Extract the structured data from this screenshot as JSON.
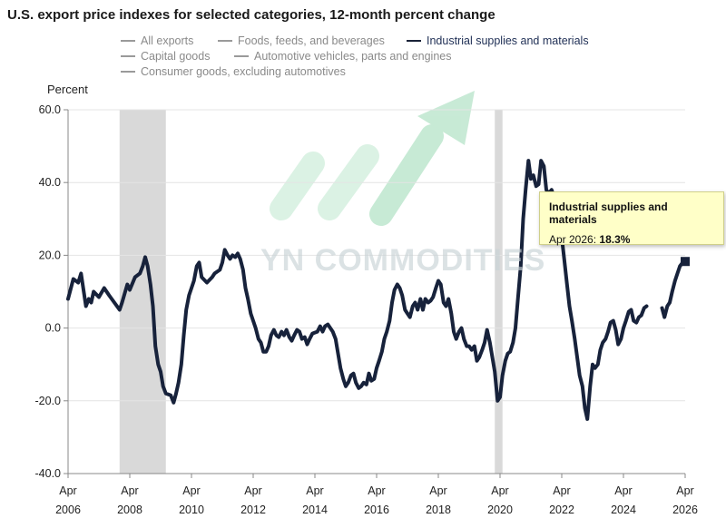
{
  "title": "U.S. export price indexes for selected categories, 12-month percent change",
  "legend": [
    {
      "label": "All exports",
      "active": false
    },
    {
      "label": "Foods, feeds, and beverages",
      "active": false
    },
    {
      "label": "Industrial supplies and materials",
      "active": true
    },
    {
      "label": "Capital goods",
      "active": false
    },
    {
      "label": "Automotive vehicles, parts and engines",
      "active": false
    },
    {
      "label": "Consumer goods, excluding automotives",
      "active": false
    }
  ],
  "watermark": "YN COMMODITIES",
  "tooltip": {
    "series": "Industrial supplies and materials",
    "date": "Apr 2026:",
    "value": "18.3%"
  },
  "colors": {
    "line": "#17223b",
    "recession": "#d9d9d9",
    "legend_inactive": "#8a8a8a",
    "legend_active": "#1f2f55",
    "tooltip_bg": "#ffffc8",
    "logo_green": "#bfe8cf"
  },
  "chart_data": {
    "type": "line",
    "title": "U.S. export price indexes for selected categories, 12-month percent change",
    "ylabel": "Percent",
    "xlabel": "",
    "ylim": [
      -40,
      60
    ],
    "y_ticks": [
      "60.0",
      "40.0",
      "20.0",
      "0.0",
      "-20.0",
      "-40.0"
    ],
    "x_ticks": [
      {
        "month": "Apr",
        "year": "2006",
        "t": 2006.25
      },
      {
        "month": "Apr",
        "year": "2008",
        "t": 2008.25
      },
      {
        "month": "Apr",
        "year": "2010",
        "t": 2010.25
      },
      {
        "month": "Apr",
        "year": "2012",
        "t": 2012.25
      },
      {
        "month": "Apr",
        "year": "2014",
        "t": 2014.25
      },
      {
        "month": "Apr",
        "year": "2016",
        "t": 2016.25
      },
      {
        "month": "Apr",
        "year": "2018",
        "t": 2018.25
      },
      {
        "month": "Apr",
        "year": "2020",
        "t": 2020.25
      },
      {
        "month": "Apr",
        "year": "2022",
        "t": 2022.25
      },
      {
        "month": "Apr",
        "year": "2024",
        "t": 2024.25
      },
      {
        "month": "Apr",
        "year": "2026",
        "t": 2026.25
      }
    ],
    "x_range": [
      2006.25,
      2026.25
    ],
    "recessions": [
      [
        2007.92,
        2009.42
      ],
      [
        2020.08,
        2020.33
      ]
    ],
    "grid": "horizontal",
    "series": [
      {
        "name": "Industrial supplies and materials",
        "points": [
          [
            2006.25,
            8
          ],
          [
            2006.42,
            13.5
          ],
          [
            2006.58,
            12.5
          ],
          [
            2006.67,
            15
          ],
          [
            2006.83,
            6
          ],
          [
            2006.92,
            8
          ],
          [
            2007.0,
            7
          ],
          [
            2007.08,
            10
          ],
          [
            2007.25,
            8.5
          ],
          [
            2007.42,
            11
          ],
          [
            2007.58,
            9
          ],
          [
            2007.75,
            7
          ],
          [
            2007.92,
            5
          ],
          [
            2008.0,
            7
          ],
          [
            2008.17,
            12
          ],
          [
            2008.25,
            10.5
          ],
          [
            2008.42,
            14
          ],
          [
            2008.58,
            15
          ],
          [
            2008.67,
            17
          ],
          [
            2008.75,
            19.5
          ],
          [
            2008.83,
            17
          ],
          [
            2008.92,
            12
          ],
          [
            2009.0,
            6
          ],
          [
            2009.08,
            -5
          ],
          [
            2009.17,
            -10
          ],
          [
            2009.25,
            -12
          ],
          [
            2009.33,
            -16
          ],
          [
            2009.42,
            -18
          ],
          [
            2009.58,
            -18.5
          ],
          [
            2009.67,
            -20.5
          ],
          [
            2009.75,
            -18
          ],
          [
            2009.83,
            -15
          ],
          [
            2009.92,
            -10
          ],
          [
            2010.0,
            -2
          ],
          [
            2010.08,
            5
          ],
          [
            2010.17,
            9
          ],
          [
            2010.25,
            11
          ],
          [
            2010.33,
            13
          ],
          [
            2010.42,
            17
          ],
          [
            2010.5,
            18
          ],
          [
            2010.58,
            14
          ],
          [
            2010.75,
            12.5
          ],
          [
            2010.92,
            14
          ],
          [
            2011.0,
            15
          ],
          [
            2011.17,
            16
          ],
          [
            2011.25,
            18
          ],
          [
            2011.33,
            21.5
          ],
          [
            2011.42,
            20
          ],
          [
            2011.5,
            19
          ],
          [
            2011.58,
            20
          ],
          [
            2011.67,
            19.5
          ],
          [
            2011.75,
            20.5
          ],
          [
            2011.83,
            19
          ],
          [
            2011.92,
            16
          ],
          [
            2012.0,
            11
          ],
          [
            2012.08,
            8
          ],
          [
            2012.17,
            4
          ],
          [
            2012.25,
            2
          ],
          [
            2012.33,
            0
          ],
          [
            2012.42,
            -3
          ],
          [
            2012.5,
            -4
          ],
          [
            2012.58,
            -6.5
          ],
          [
            2012.67,
            -6.5
          ],
          [
            2012.75,
            -5
          ],
          [
            2012.83,
            -2
          ],
          [
            2012.92,
            -0.5
          ],
          [
            2013.0,
            -2
          ],
          [
            2013.08,
            -2.5
          ],
          [
            2013.17,
            -1
          ],
          [
            2013.25,
            -2
          ],
          [
            2013.33,
            -0.5
          ],
          [
            2013.42,
            -2.5
          ],
          [
            2013.5,
            -3.5
          ],
          [
            2013.58,
            -2
          ],
          [
            2013.67,
            -0.5
          ],
          [
            2013.75,
            -1
          ],
          [
            2013.83,
            -3
          ],
          [
            2013.92,
            -2.5
          ],
          [
            2014.0,
            -4.5
          ],
          [
            2014.08,
            -3
          ],
          [
            2014.17,
            -1.5
          ],
          [
            2014.33,
            -1
          ],
          [
            2014.42,
            0.5
          ],
          [
            2014.5,
            -1
          ],
          [
            2014.58,
            0.5
          ],
          [
            2014.67,
            1
          ],
          [
            2014.75,
            0
          ],
          [
            2014.83,
            -1
          ],
          [
            2014.92,
            -3
          ],
          [
            2015.0,
            -7
          ],
          [
            2015.08,
            -11
          ],
          [
            2015.17,
            -14
          ],
          [
            2015.25,
            -16
          ],
          [
            2015.33,
            -15
          ],
          [
            2015.42,
            -13
          ],
          [
            2015.5,
            -12.5
          ],
          [
            2015.58,
            -15
          ],
          [
            2015.67,
            -16.5
          ],
          [
            2015.75,
            -16
          ],
          [
            2015.83,
            -15
          ],
          [
            2015.92,
            -15.5
          ],
          [
            2016.0,
            -12.5
          ],
          [
            2016.08,
            -14.5
          ],
          [
            2016.17,
            -14
          ],
          [
            2016.25,
            -11
          ],
          [
            2016.33,
            -9
          ],
          [
            2016.42,
            -6.5
          ],
          [
            2016.5,
            -3
          ],
          [
            2016.58,
            -1
          ],
          [
            2016.67,
            2
          ],
          [
            2016.75,
            7
          ],
          [
            2016.83,
            10.5
          ],
          [
            2016.92,
            12
          ],
          [
            2017.0,
            11
          ],
          [
            2017.08,
            9
          ],
          [
            2017.17,
            5
          ],
          [
            2017.25,
            4
          ],
          [
            2017.33,
            3
          ],
          [
            2017.42,
            6
          ],
          [
            2017.5,
            7
          ],
          [
            2017.58,
            5
          ],
          [
            2017.67,
            8
          ],
          [
            2017.75,
            5
          ],
          [
            2017.83,
            8
          ],
          [
            2017.92,
            7
          ],
          [
            2018.0,
            7.5
          ],
          [
            2018.08,
            8.5
          ],
          [
            2018.17,
            11
          ],
          [
            2018.25,
            13
          ],
          [
            2018.33,
            12
          ],
          [
            2018.42,
            7
          ],
          [
            2018.5,
            6
          ],
          [
            2018.58,
            8
          ],
          [
            2018.67,
            4
          ],
          [
            2018.75,
            -1
          ],
          [
            2018.83,
            -3
          ],
          [
            2018.92,
            -1
          ],
          [
            2019.0,
            0
          ],
          [
            2019.08,
            -3
          ],
          [
            2019.17,
            -5
          ],
          [
            2019.25,
            -5
          ],
          [
            2019.33,
            -6
          ],
          [
            2019.42,
            -5
          ],
          [
            2019.5,
            -9
          ],
          [
            2019.58,
            -8
          ],
          [
            2019.67,
            -6
          ],
          [
            2019.75,
            -4
          ],
          [
            2019.83,
            -0.5
          ],
          [
            2019.92,
            -4
          ],
          [
            2020.0,
            -8
          ],
          [
            2020.08,
            -12
          ],
          [
            2020.17,
            -20
          ],
          [
            2020.25,
            -19
          ],
          [
            2020.33,
            -13
          ],
          [
            2020.42,
            -9
          ],
          [
            2020.5,
            -7
          ],
          [
            2020.58,
            -6.5
          ],
          [
            2020.67,
            -4
          ],
          [
            2020.75,
            0
          ],
          [
            2020.83,
            8
          ],
          [
            2020.92,
            17
          ],
          [
            2021.0,
            30
          ],
          [
            2021.08,
            38
          ],
          [
            2021.17,
            46
          ],
          [
            2021.25,
            41
          ],
          [
            2021.33,
            42
          ],
          [
            2021.42,
            39
          ],
          [
            2021.5,
            39.5
          ],
          [
            2021.58,
            46
          ],
          [
            2021.67,
            44.5
          ],
          [
            2021.75,
            38
          ],
          [
            2021.83,
            37
          ],
          [
            2021.92,
            38
          ],
          [
            2022.0,
            36
          ],
          [
            2022.08,
            34
          ],
          [
            2022.17,
            30
          ],
          [
            2022.25,
            25
          ],
          [
            2022.33,
            19
          ],
          [
            2022.42,
            12
          ],
          [
            2022.5,
            6
          ],
          [
            2022.58,
            2
          ],
          [
            2022.67,
            -3
          ],
          [
            2022.75,
            -8
          ],
          [
            2022.83,
            -13
          ],
          [
            2022.92,
            -16
          ],
          [
            2023.0,
            -22
          ],
          [
            2023.08,
            -25
          ],
          [
            2023.17,
            -16
          ],
          [
            2023.25,
            -10
          ],
          [
            2023.33,
            -11
          ],
          [
            2023.42,
            -10
          ],
          [
            2023.5,
            -6
          ],
          [
            2023.58,
            -4
          ],
          [
            2023.67,
            -3
          ],
          [
            2023.75,
            -1
          ],
          [
            2023.83,
            1.5
          ],
          [
            2023.92,
            2
          ],
          [
            2024.0,
            -0.5
          ],
          [
            2024.08,
            -4.5
          ],
          [
            2024.17,
            -3
          ],
          [
            2024.25,
            0
          ],
          [
            2024.33,
            2
          ],
          [
            2024.42,
            4.5
          ],
          [
            2024.5,
            5
          ],
          [
            2024.58,
            2
          ],
          [
            2024.67,
            1.5
          ],
          [
            2024.75,
            3
          ],
          [
            2024.83,
            3.5
          ],
          [
            2024.92,
            5.5
          ],
          [
            2025.0,
            6
          ]
        ]
      },
      {
        "name": "Industrial supplies and materials",
        "points": [
          [
            2025.5,
            5.5
          ],
          [
            2025.58,
            3
          ],
          [
            2025.67,
            6
          ],
          [
            2025.75,
            7
          ],
          [
            2025.83,
            10
          ],
          [
            2025.92,
            13
          ],
          [
            2026.0,
            15
          ],
          [
            2026.08,
            17
          ],
          [
            2026.17,
            18
          ],
          [
            2026.25,
            18.3
          ]
        ]
      }
    ],
    "highlight": {
      "t": 2026.25,
      "value": 18.3
    }
  }
}
